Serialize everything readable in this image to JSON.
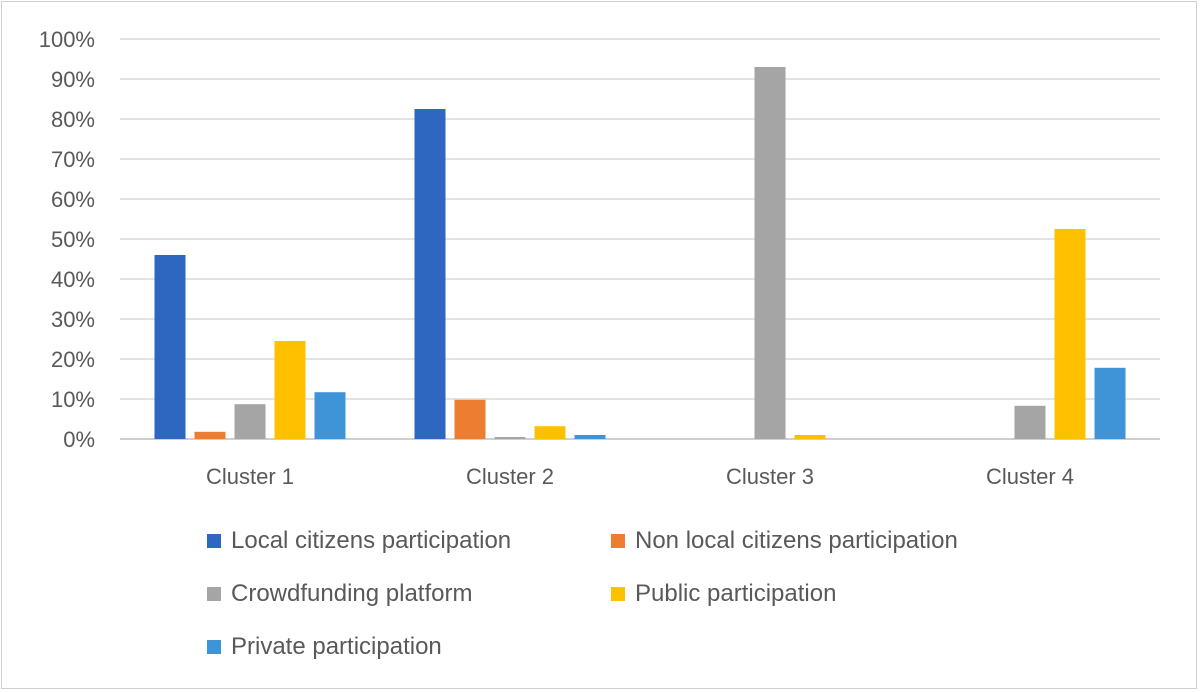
{
  "chart_data": {
    "type": "bar",
    "categories": [
      "Cluster 1",
      "Cluster 2",
      "Cluster 3",
      "Cluster 4"
    ],
    "ylim": [
      0,
      100
    ],
    "yticks": [
      "0%",
      "10%",
      "20%",
      "30%",
      "40%",
      "50%",
      "60%",
      "70%",
      "80%",
      "90%",
      "100%"
    ],
    "grid": true,
    "legend_position": "bottom",
    "series": [
      {
        "name": "Local citizens participation",
        "color": "#2e67c0",
        "values": [
          46,
          82.5,
          0,
          0
        ]
      },
      {
        "name": "Non local citizens participation",
        "color": "#ed7d31",
        "values": [
          1.8,
          9.8,
          0,
          0
        ]
      },
      {
        "name": "Crowdfunding platform",
        "color": "#a5a5a5",
        "values": [
          8.7,
          0.5,
          93,
          8.3
        ]
      },
      {
        "name": "Public participation",
        "color": "#ffc000",
        "values": [
          24.5,
          3.2,
          1,
          52.5
        ]
      },
      {
        "name": "Private participation",
        "color": "#3f94d8",
        "values": [
          11.7,
          1,
          0,
          17.8
        ]
      }
    ]
  }
}
